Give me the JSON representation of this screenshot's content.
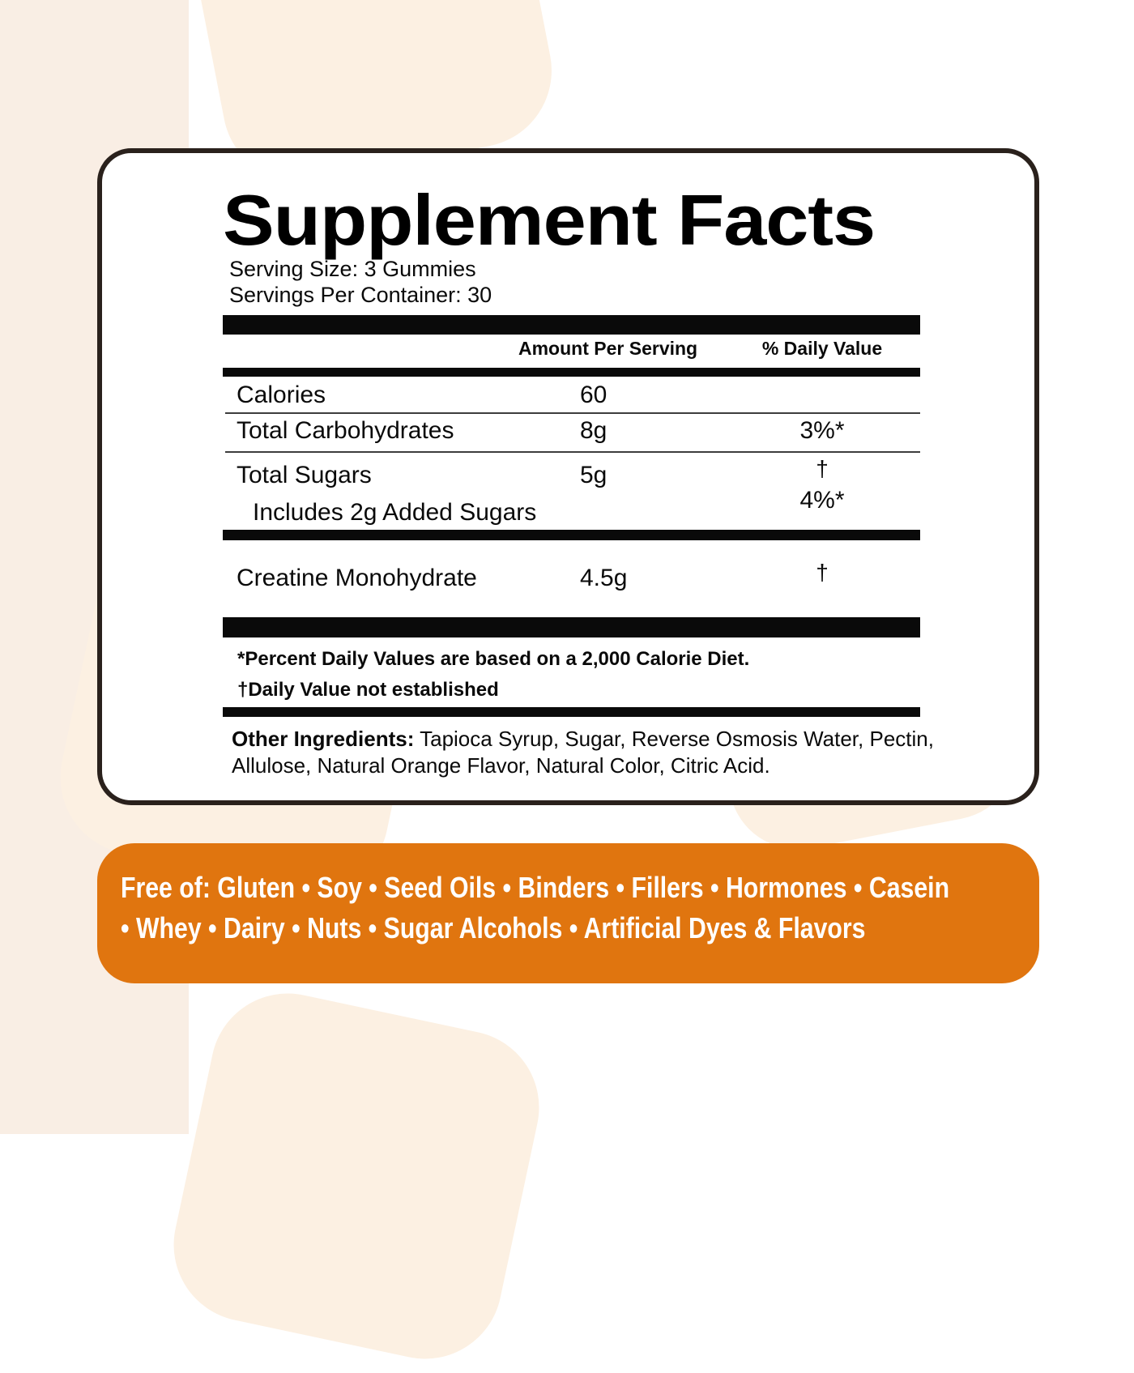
{
  "panel": {
    "title": "Supplement Facts",
    "serving_size": "Serving Size: 3 Gummies",
    "servings_per_container": "Servings Per Container: 30",
    "header": {
      "amount": "Amount Per Serving",
      "daily_value": "% Daily Value"
    },
    "rows": {
      "calories": {
        "label": "Calories",
        "amount": "60"
      },
      "total_carbohydrates": {
        "label": "Total Carbohydrates",
        "amount": "8g",
        "daily_value": "3%*"
      },
      "total_sugars": {
        "label": "Total Sugars",
        "amount": "5g",
        "daily_value": "†",
        "added_sugars_daily_value": "4%*",
        "sub_label": "Includes 2g Added Sugars"
      },
      "creatine": {
        "label": "Creatine Monohydrate",
        "amount": "4.5g",
        "daily_value": "†"
      }
    },
    "footnotes": {
      "percent_dv": "*Percent Daily Values are based on a 2,000 Calorie Diet.",
      "dv_not_established": "†Daily Value not established"
    },
    "other_ingredients": {
      "label": "Other Ingredients:",
      "line1_rest": " Tapioca Syrup, Sugar, Reverse Osmosis Water, Pectin,",
      "line2": "Allulose, Natural Orange Flavor, Natural Color, Citric Acid."
    }
  },
  "banner": {
    "line1": "Free of: Gluten • Soy • Seed Oils • Binders • Fillers • Hormones • Casein",
    "line2": "• Whey • Dairy • Nuts • Sugar Alcohols • Artificial Dyes & Flavors"
  },
  "colors": {
    "banner_background": "#E0750F",
    "banner_text": "#FFFFFF",
    "card_border": "#2A211C",
    "background_cream": "#F9EEE4",
    "background_peach": "#FCF0E2",
    "bar_black": "#0A0A0A"
  }
}
